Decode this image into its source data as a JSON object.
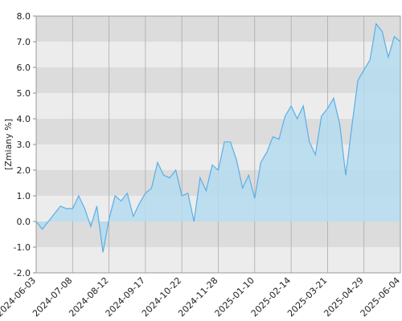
{
  "chart_data": {
    "type": "area",
    "y_label": "[Zmiany %]",
    "x": [
      "2024-06-03",
      "2024-06-09",
      "2024-06-15",
      "2024-06-21",
      "2024-06-27",
      "2024-07-02",
      "2024-07-08",
      "2024-07-14",
      "2024-07-20",
      "2024-07-26",
      "2024-08-01",
      "2024-08-05",
      "2024-08-12",
      "2024-08-18",
      "2024-08-24",
      "2024-08-30",
      "2024-09-05",
      "2024-09-11",
      "2024-09-17",
      "2024-09-23",
      "2024-09-29",
      "2024-10-05",
      "2024-10-11",
      "2024-10-17",
      "2024-10-22",
      "2024-10-28",
      "2024-11-03",
      "2024-11-09",
      "2024-11-15",
      "2024-11-21",
      "2024-11-28",
      "2024-12-04",
      "2024-12-11",
      "2024-12-18",
      "2024-12-25",
      "2025-01-03",
      "2025-01-10",
      "2025-01-16",
      "2025-01-22",
      "2025-01-28",
      "2025-02-03",
      "2025-02-09",
      "2025-02-14",
      "2025-02-20",
      "2025-02-26",
      "2025-03-04",
      "2025-03-10",
      "2025-03-16",
      "2025-03-21",
      "2025-03-27",
      "2025-04-02",
      "2025-04-08",
      "2025-04-14",
      "2025-04-22",
      "2025-04-29",
      "2025-05-05",
      "2025-05-11",
      "2025-05-17",
      "2025-05-23",
      "2025-05-29",
      "2025-06-04"
    ],
    "series": [
      {
        "name": "Zmiany",
        "color": "#5aaee8",
        "fill": "#b5dcee",
        "values": [
          0.0,
          -0.3,
          0.0,
          0.3,
          0.6,
          0.5,
          0.5,
          1.0,
          0.5,
          -0.2,
          0.6,
          -1.2,
          0.1,
          1.0,
          0.8,
          1.1,
          0.2,
          0.7,
          1.1,
          1.3,
          2.3,
          1.8,
          1.7,
          2.0,
          1.0,
          1.1,
          0.0,
          1.7,
          1.2,
          2.2,
          2.0,
          3.1,
          3.1,
          2.4,
          1.3,
          1.8,
          0.9,
          2.3,
          2.7,
          3.3,
          3.2,
          4.1,
          4.5,
          4.0,
          4.5,
          3.1,
          2.6,
          4.1,
          4.4,
          4.8,
          3.8,
          1.8,
          3.7,
          5.5,
          5.9,
          6.3,
          7.7,
          7.4,
          6.4,
          7.2,
          7.0
        ]
      }
    ],
    "xticks": [
      "2024-06-03",
      "2024-07-08",
      "2024-08-12",
      "2024-09-17",
      "2024-10-22",
      "2024-11-28",
      "2025-01-10",
      "2025-02-14",
      "2025-03-21",
      "2025-04-29",
      "2025-06-04"
    ],
    "ylim": [
      -2,
      8
    ],
    "yticks": [
      {
        "value": -2,
        "label": "-2.0"
      },
      {
        "value": -1,
        "label": "-1.0"
      },
      {
        "value": 0,
        "label": "0.0"
      },
      {
        "value": 1,
        "label": "1.0"
      },
      {
        "value": 2,
        "label": "2.0"
      },
      {
        "value": 3,
        "label": "3.0"
      },
      {
        "value": 4,
        "label": "4.0"
      },
      {
        "value": 5,
        "label": "5.0"
      },
      {
        "value": 6,
        "label": "6.0"
      },
      {
        "value": 7,
        "label": "7.0"
      },
      {
        "value": 8,
        "label": "8.0"
      }
    ],
    "grid": true
  }
}
